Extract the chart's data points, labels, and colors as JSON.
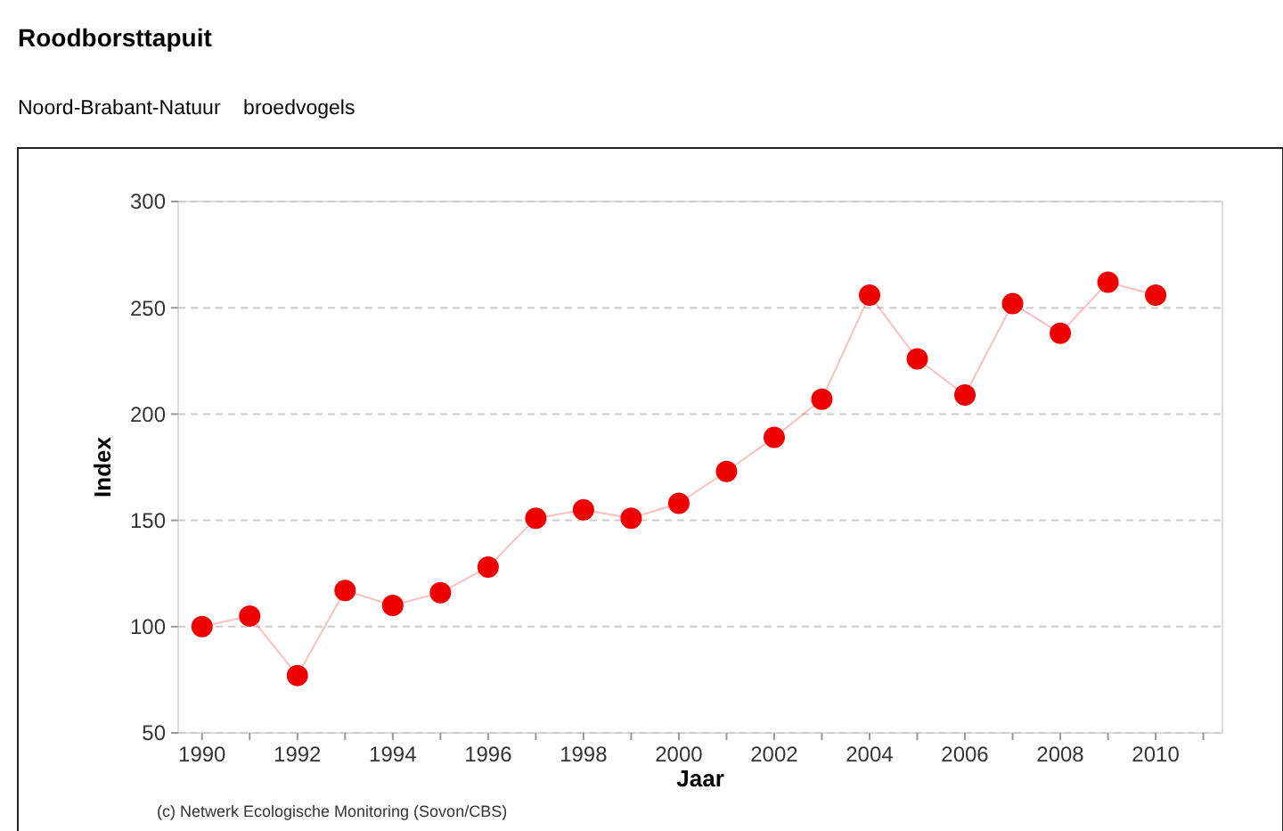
{
  "chart_data": {
    "type": "line",
    "title": "Roodborsttapuit",
    "subtitle": "Noord-Brabant-Natuur    broedvogels",
    "xlabel": "Jaar",
    "ylabel": "Index",
    "x": [
      1990,
      1991,
      1992,
      1993,
      1994,
      1995,
      1996,
      1997,
      1998,
      1999,
      2000,
      2001,
      2002,
      2003,
      2004,
      2005,
      2006,
      2007,
      2008,
      2009,
      2010
    ],
    "series": [
      {
        "color": "#ee0000",
        "values": [
          100,
          105,
          77,
          117,
          110,
          116,
          128,
          151,
          155,
          151,
          158,
          173,
          189,
          207,
          256,
          226,
          209,
          252,
          238,
          262,
          256
        ]
      }
    ],
    "xlim": [
      1989.5,
      2011.4
    ],
    "ylim": [
      50,
      300
    ],
    "xticks": [
      1990,
      {
        "value": 1991,
        "label": null
      },
      1992,
      {
        "value": 1993,
        "label": null
      },
      1994,
      {
        "value": 1995,
        "label": null
      },
      1996,
      {
        "value": 1997,
        "label": null
      },
      1998,
      {
        "value": 1999,
        "label": null
      },
      2000,
      {
        "value": 2001,
        "label": null
      },
      2002,
      {
        "value": 2003,
        "label": null
      },
      2004,
      {
        "value": 2005,
        "label": null
      },
      2006,
      {
        "value": 2007,
        "label": null
      },
      2008,
      {
        "value": 2009,
        "label": null
      },
      2010,
      {
        "value": 2011,
        "label": null
      }
    ],
    "yticks": [
      50,
      100,
      150,
      200,
      250,
      300
    ],
    "grid": "y",
    "marker": "circle",
    "line_style": "solid",
    "annotations": [
      "(c) Netwerk Ecologische Monitoring (Sovon/CBS)"
    ]
  }
}
